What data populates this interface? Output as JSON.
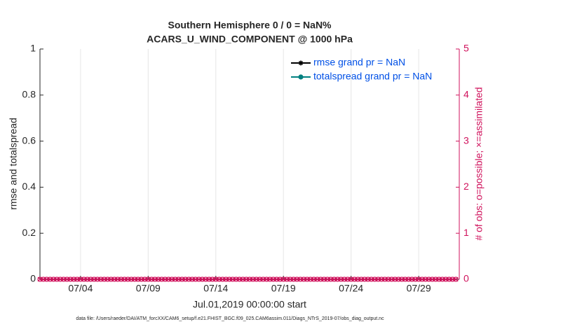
{
  "chart_data": {
    "type": "line",
    "title": [
      "Southern Hemisphere 0 / 0 = NaN%",
      "ACARS_U_WIND_COMPONENT @ 1000 hPa"
    ],
    "x_label": "Jul.01,2019 00:00:00 start",
    "y_label": "rmse and totalspread",
    "y2_label": "# of obs: o=possible; ×=assimilated",
    "footnote": "data file: /Users/raeder/DAI/ATM_forcXX/CAM6_setup/f.e21.FHIST_BGC.f09_025.CAM6assim.011/Diags_NTrS_2019-07/obs_diag_output.nc",
    "xlim": [
      1,
      32
    ],
    "xticks": [
      {
        "value": 4,
        "label": "07/04"
      },
      {
        "value": 9,
        "label": "07/09"
      },
      {
        "value": 14,
        "label": "07/14"
      },
      {
        "value": 19,
        "label": "07/19"
      },
      {
        "value": 24,
        "label": "07/24"
      },
      {
        "value": 29,
        "label": "07/29"
      }
    ],
    "ylim": [
      0,
      1
    ],
    "yticks": [
      0,
      0.2,
      0.4,
      0.6,
      0.8,
      1
    ],
    "y2lim": [
      0,
      5
    ],
    "y2ticks": [
      0,
      1,
      2,
      3,
      4,
      5
    ],
    "grid": "x",
    "legend": "upper right",
    "x": [
      1,
      1.25,
      1.5,
      1.75,
      2,
      2.25,
      2.5,
      2.75,
      3,
      3.25,
      3.5,
      3.75,
      4,
      4.25,
      4.5,
      4.75,
      5,
      5.25,
      5.5,
      5.75,
      6,
      6.25,
      6.5,
      6.75,
      7,
      7.25,
      7.5,
      7.75,
      8,
      8.25,
      8.5,
      8.75,
      9,
      9.25,
      9.5,
      9.75,
      10,
      10.25,
      10.5,
      10.75,
      11,
      11.25,
      11.5,
      11.75,
      12,
      12.25,
      12.5,
      12.75,
      13,
      13.25,
      13.5,
      13.75,
      14,
      14.25,
      14.5,
      14.75,
      15,
      15.25,
      15.5,
      15.75,
      16,
      16.25,
      16.5,
      16.75,
      17,
      17.25,
      17.5,
      17.75,
      18,
      18.25,
      18.5,
      18.75,
      19,
      19.25,
      19.5,
      19.75,
      20,
      20.25,
      20.5,
      20.75,
      21,
      21.25,
      21.5,
      21.75,
      22,
      22.25,
      22.5,
      22.75,
      23,
      23.25,
      23.5,
      23.75,
      24,
      24.25,
      24.5,
      24.75,
      25,
      25.25,
      25.5,
      25.75,
      26,
      26.25,
      26.5,
      26.75,
      27,
      27.25,
      27.5,
      27.75,
      28,
      28.25,
      28.5,
      28.75,
      29,
      29.25,
      29.5,
      29.75,
      30,
      30.25,
      30.5,
      30.75,
      31,
      31.25,
      31.5,
      31.75
    ],
    "series": [
      {
        "name": "rmse grand pr = NaN",
        "color": "#000000",
        "marker": "*",
        "values": [
          null,
          null,
          null,
          null,
          null,
          null,
          null,
          null,
          null,
          null,
          null,
          null,
          null,
          null,
          null,
          null,
          null,
          null,
          null,
          null,
          null,
          null,
          null,
          null,
          null,
          null,
          null,
          null,
          null,
          null,
          null,
          null,
          null,
          null,
          null,
          null,
          null,
          null,
          null,
          null,
          null,
          null,
          null,
          null,
          null,
          null,
          null,
          null,
          null,
          null,
          null,
          null,
          null,
          null,
          null,
          null,
          null,
          null,
          null,
          null,
          null,
          null,
          null,
          null,
          null,
          null,
          null,
          null,
          null,
          null,
          null,
          null,
          null,
          null,
          null,
          null,
          null,
          null,
          null,
          null,
          null,
          null,
          null,
          null,
          null,
          null,
          null,
          null,
          null,
          null,
          null,
          null,
          null,
          null,
          null,
          null,
          null,
          null,
          null,
          null,
          null,
          null,
          null,
          null,
          null,
          null,
          null,
          null,
          null,
          null,
          null,
          null,
          null,
          null,
          null,
          null,
          null,
          null,
          null,
          null,
          null,
          null,
          null,
          null
        ]
      },
      {
        "name": "totalspread grand pr = NaN",
        "color": "#008080",
        "marker": "o",
        "values": [
          null,
          null,
          null,
          null,
          null,
          null,
          null,
          null,
          null,
          null,
          null,
          null,
          null,
          null,
          null,
          null,
          null,
          null,
          null,
          null,
          null,
          null,
          null,
          null,
          null,
          null,
          null,
          null,
          null,
          null,
          null,
          null,
          null,
          null,
          null,
          null,
          null,
          null,
          null,
          null,
          null,
          null,
          null,
          null,
          null,
          null,
          null,
          null,
          null,
          null,
          null,
          null,
          null,
          null,
          null,
          null,
          null,
          null,
          null,
          null,
          null,
          null,
          null,
          null,
          null,
          null,
          null,
          null,
          null,
          null,
          null,
          null,
          null,
          null,
          null,
          null,
          null,
          null,
          null,
          null,
          null,
          null,
          null,
          null,
          null,
          null,
          null,
          null,
          null,
          null,
          null,
          null,
          null,
          null,
          null,
          null,
          null,
          null,
          null,
          null,
          null,
          null,
          null,
          null,
          null,
          null,
          null,
          null,
          null,
          null,
          null,
          null,
          null,
          null,
          null,
          null,
          null,
          null,
          null,
          null,
          null,
          null,
          null,
          null
        ]
      },
      {
        "color": "#d0125c",
        "marker": "o",
        "axis": "y2",
        "values": [
          0,
          0,
          0,
          0,
          0,
          0,
          0,
          0,
          0,
          0,
          0,
          0,
          0,
          0,
          0,
          0,
          0,
          0,
          0,
          0,
          0,
          0,
          0,
          0,
          0,
          0,
          0,
          0,
          0,
          0,
          0,
          0,
          0,
          0,
          0,
          0,
          0,
          0,
          0,
          0,
          0,
          0,
          0,
          0,
          0,
          0,
          0,
          0,
          0,
          0,
          0,
          0,
          0,
          0,
          0,
          0,
          0,
          0,
          0,
          0,
          0,
          0,
          0,
          0,
          0,
          0,
          0,
          0,
          0,
          0,
          0,
          0,
          0,
          0,
          0,
          0,
          0,
          0,
          0,
          0,
          0,
          0,
          0,
          0,
          0,
          0,
          0,
          0,
          0,
          0,
          0,
          0,
          0,
          0,
          0,
          0,
          0,
          0,
          0,
          0,
          0,
          0,
          0,
          0,
          0,
          0,
          0,
          0,
          0,
          0,
          0,
          0,
          0,
          0,
          0,
          0,
          0,
          0,
          0,
          0,
          0,
          0,
          0,
          0
        ]
      },
      {
        "color": "#d0125c",
        "marker": "x",
        "axis": "y2",
        "values": [
          0,
          0,
          0,
          0,
          0,
          0,
          0,
          0,
          0,
          0,
          0,
          0,
          0,
          0,
          0,
          0,
          0,
          0,
          0,
          0,
          0,
          0,
          0,
          0,
          0,
          0,
          0,
          0,
          0,
          0,
          0,
          0,
          0,
          0,
          0,
          0,
          0,
          0,
          0,
          0,
          0,
          0,
          0,
          0,
          0,
          0,
          0,
          0,
          0,
          0,
          0,
          0,
          0,
          0,
          0,
          0,
          0,
          0,
          0,
          0,
          0,
          0,
          0,
          0,
          0,
          0,
          0,
          0,
          0,
          0,
          0,
          0,
          0,
          0,
          0,
          0,
          0,
          0,
          0,
          0,
          0,
          0,
          0,
          0,
          0,
          0,
          0,
          0,
          0,
          0,
          0,
          0,
          0,
          0,
          0,
          0,
          0,
          0,
          0,
          0,
          0,
          0,
          0,
          0,
          0,
          0,
          0,
          0,
          0,
          0,
          0,
          0,
          0,
          0,
          0,
          0,
          0,
          0,
          0,
          0,
          0,
          0,
          0,
          0
        ]
      }
    ],
    "legend_text_color": "#0050e6"
  }
}
